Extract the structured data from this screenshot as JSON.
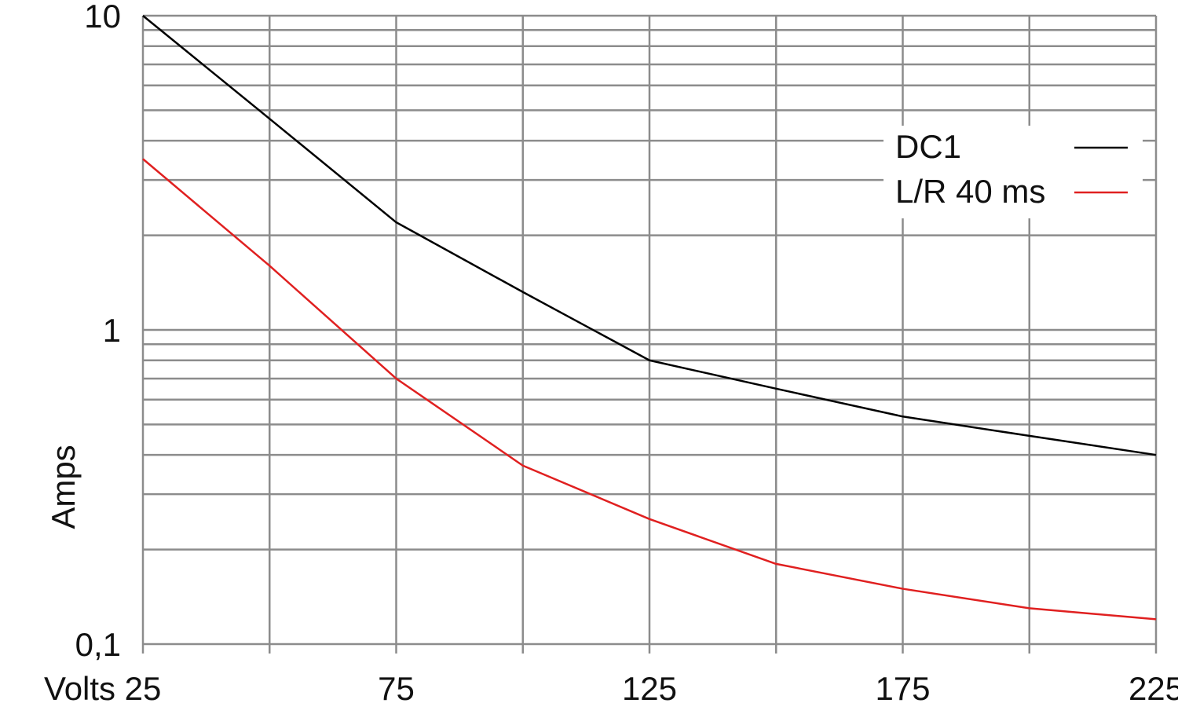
{
  "chart_data": {
    "type": "line",
    "log_y": true,
    "grid": true,
    "x_label": "Volts",
    "y_label": "Amps",
    "x": [
      25,
      50,
      75,
      100,
      125,
      150,
      175,
      200,
      225
    ],
    "series": [
      {
        "name": "DC1",
        "color": "#000000",
        "values": [
          10,
          4.7,
          2.2,
          1.32,
          0.8,
          0.65,
          0.53,
          0.46,
          0.4
        ]
      },
      {
        "name": "L/R 40 ms",
        "color": "#e02020",
        "values": [
          3.5,
          1.6,
          0.7,
          0.37,
          0.25,
          0.18,
          0.15,
          0.13,
          0.12
        ]
      }
    ],
    "xlim": [
      25,
      225
    ],
    "xticks": [
      25,
      75,
      125,
      175,
      225
    ],
    "xminorticks": [
      50,
      100,
      150,
      200
    ],
    "ylim": [
      0.1,
      10
    ],
    "yticks": [
      {
        "value": 0.1,
        "label": "0,1"
      },
      1,
      10
    ],
    "yminorticks": [
      0.2,
      0.3,
      0.4,
      0.5,
      0.6,
      0.7,
      0.8,
      0.9,
      2,
      3,
      4,
      5,
      6,
      7,
      8,
      9
    ],
    "legend": "upper right"
  }
}
